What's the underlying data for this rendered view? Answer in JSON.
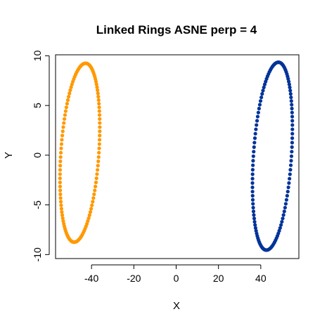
{
  "chart_data": {
    "type": "scatter",
    "title": "Linked Rings ASNE perp = 4",
    "xlabel": "X",
    "ylabel": "Y",
    "xlim": [
      -57,
      58
    ],
    "ylim": [
      -10.4,
      10.1
    ],
    "x_ticks": [
      -40,
      -20,
      0,
      20,
      40
    ],
    "y_ticks": [
      -10,
      -5,
      0,
      5,
      10
    ],
    "grid": false,
    "legend": "none",
    "series": [
      {
        "color": "#ff9900",
        "ring": {
          "center": [
            -45.5,
            0.25
          ],
          "radius_x": 9.0,
          "radius_y": 9.0,
          "tilt": 0.03,
          "points": 130
        }
      },
      {
        "color": "#003399",
        "ring": {
          "center": [
            45.5,
            -0.1
          ],
          "radius_x": 9.0,
          "radius_y": 9.45,
          "tilt": 0.03,
          "points": 130
        }
      }
    ]
  }
}
